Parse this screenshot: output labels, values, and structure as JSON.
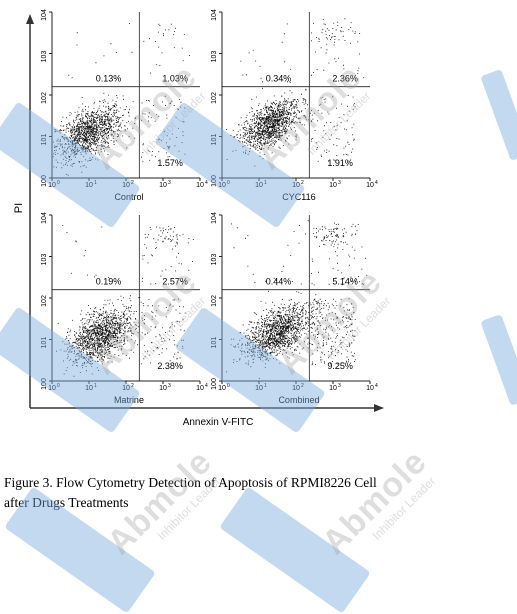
{
  "chart_data": {
    "type": "scatter",
    "ylabel": "PI",
    "xlabel": "Annexin V-FITC",
    "x_ticks": [
      "10^0",
      "10^1",
      "10^2",
      "10^3",
      "10^4"
    ],
    "y_ticks": [
      "10^0",
      "10^1",
      "10^2",
      "10^3",
      "10^4"
    ],
    "xscale": "log",
    "yscale": "log",
    "xlim": [
      1,
      10000
    ],
    "ylim": [
      1,
      10000
    ],
    "panels": [
      {
        "name": "Control",
        "quadrants": {
          "upper_left": "0.13%",
          "upper_right": "1.03%",
          "lower_right": "1.57%"
        }
      },
      {
        "name": "CYC116",
        "quadrants": {
          "upper_left": "0.34%",
          "upper_right": "2.36%",
          "lower_right": "1.91%"
        }
      },
      {
        "name": "Matrine",
        "quadrants": {
          "upper_left": "0.19%",
          "upper_right": "2.57%",
          "lower_right": "2.38%"
        }
      },
      {
        "name": "Combined",
        "quadrants": {
          "upper_left": "0.44%",
          "upper_right": "5.14%",
          "lower_right": "9.25%"
        }
      }
    ]
  },
  "caption": {
    "line1": "Figure 3. Flow Cytometry Detection of Apoptosis of RPMI8226 Cell",
    "line2": "after Drugs Treatments"
  },
  "watermark": {
    "brand": "Abmole",
    "tagline": "Inhibitor Leader"
  },
  "colors": {
    "dots": "#111111",
    "blue": "#4a90d9",
    "axis": "#333333"
  }
}
